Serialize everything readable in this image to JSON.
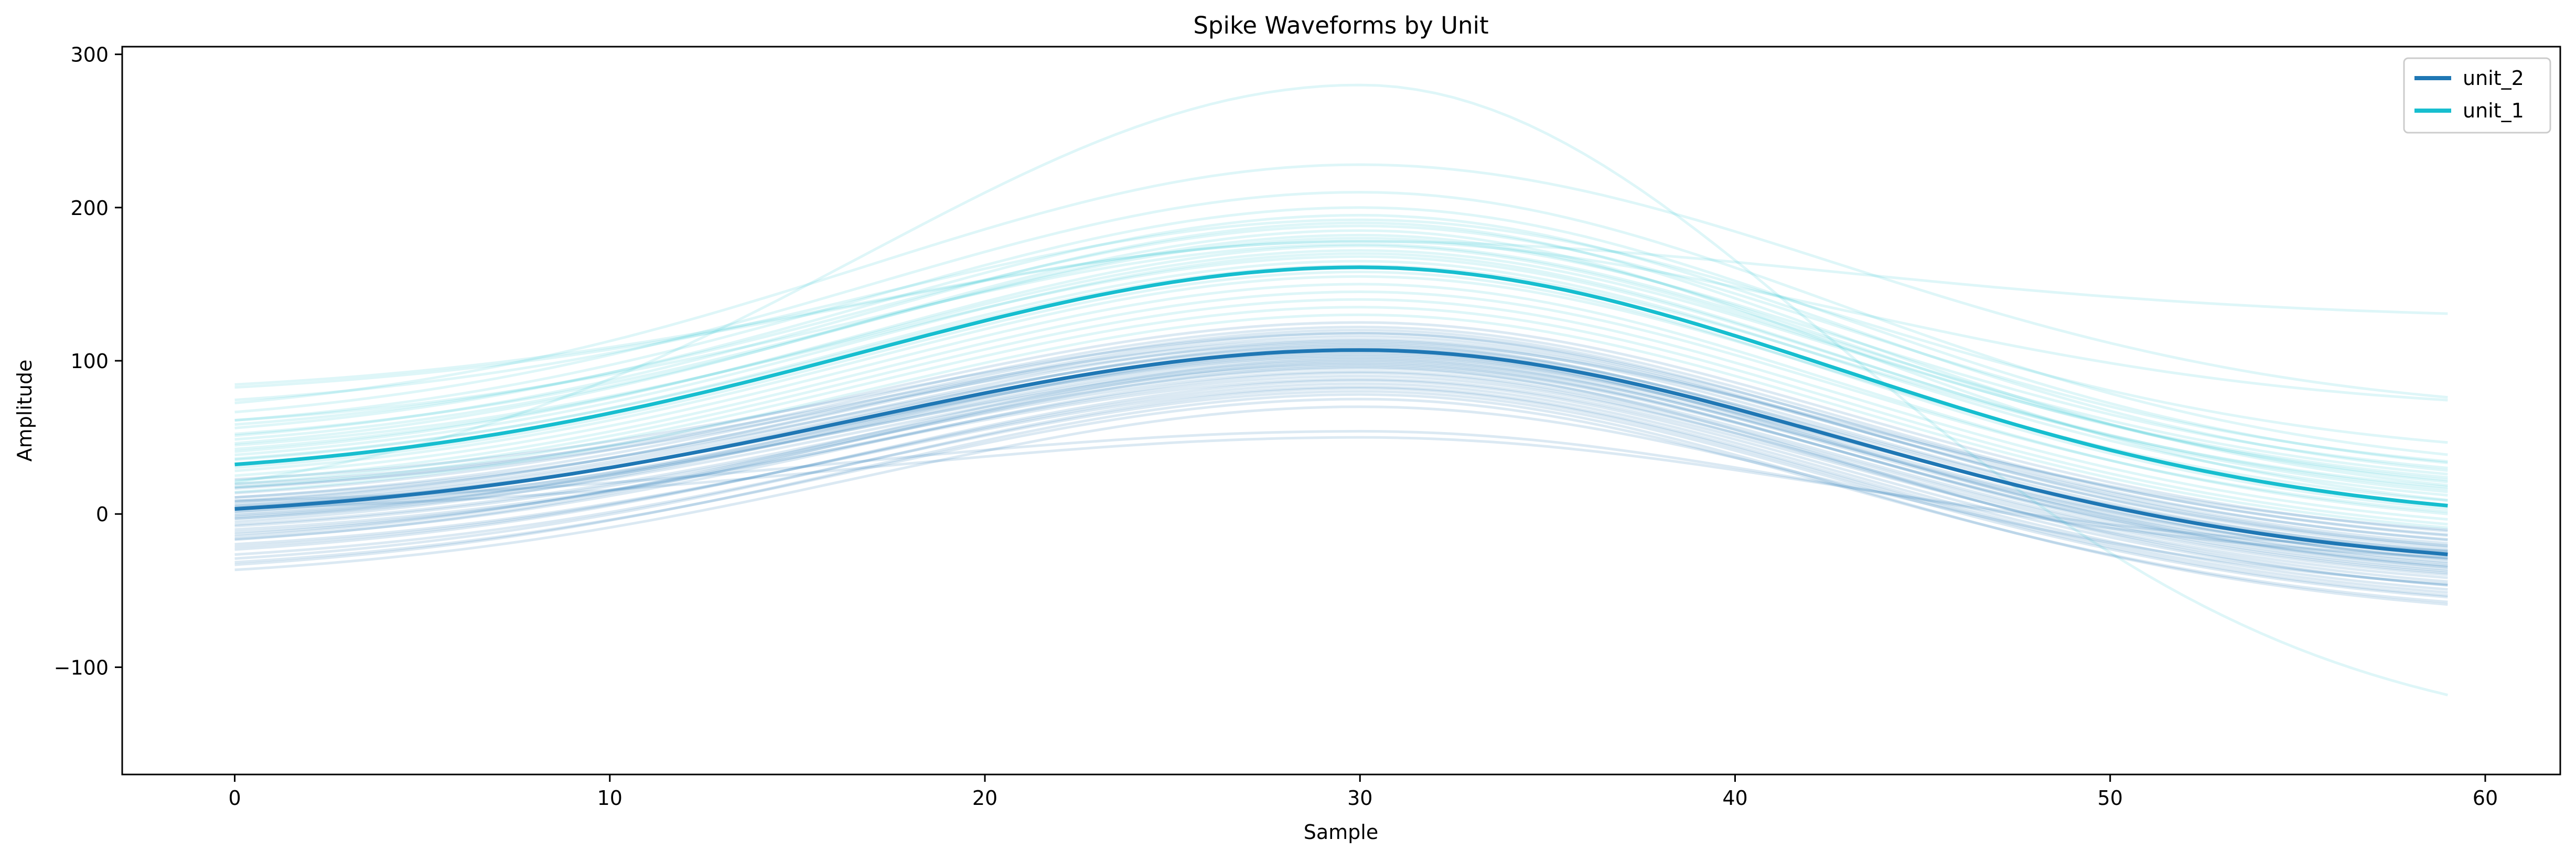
{
  "chart_data": {
    "type": "line",
    "title": "Spike Waveforms by Unit",
    "xlabel": "Sample",
    "ylabel": "Amplitude",
    "xlim": [
      -3,
      62
    ],
    "ylim": [
      -170,
      305
    ],
    "xticks": [
      0,
      10,
      20,
      30,
      40,
      50,
      60
    ],
    "yticks": [
      -100,
      0,
      100,
      200,
      300
    ],
    "xtick_labels": [
      "0",
      "10",
      "20",
      "30",
      "40",
      "50",
      "60"
    ],
    "ytick_labels": [
      "−100",
      "0",
      "100",
      "200",
      "300"
    ],
    "grid": false,
    "legend_position": "top-right",
    "colors": {
      "unit_2": "#1f77b4",
      "unit_1": "#17becf"
    },
    "series": [
      {
        "name": "unit_2",
        "role": "mean",
        "x_start": 0,
        "x_end": 59,
        "peak_x": 30,
        "start_value": -5,
        "peak_value": 107,
        "end_value": -37
      },
      {
        "name": "unit_1",
        "role": "mean",
        "x_start": 0,
        "x_end": 59,
        "peak_x": 30,
        "start_value": 22,
        "peak_value": 161,
        "end_value": -7
      }
    ],
    "individual_traces": {
      "unit_2": [
        [
          -5,
          107,
          -37
        ],
        [
          -3,
          110,
          -35
        ],
        [
          -8,
          104,
          -40
        ],
        [
          -2,
          113,
          -33
        ],
        [
          -10,
          102,
          -42
        ],
        [
          0,
          116,
          -30
        ],
        [
          -6,
          98,
          -45
        ],
        [
          -12,
          108,
          -38
        ],
        [
          2,
          120,
          -28
        ],
        [
          -15,
          95,
          -48
        ],
        [
          -4,
          105,
          -36
        ],
        [
          -7,
          111,
          -41
        ],
        [
          -20,
          90,
          -50
        ],
        [
          5,
          122,
          -25
        ],
        [
          -9,
          100,
          -39
        ],
        [
          -1,
          118,
          -32
        ],
        [
          -25,
          92,
          -55
        ],
        [
          8,
          125,
          -22
        ],
        [
          -11,
          97,
          -44
        ],
        [
          -18,
          88,
          -52
        ],
        [
          -30,
          85,
          -60
        ],
        [
          -35,
          80,
          -65
        ],
        [
          10,
          112,
          -20
        ],
        [
          -14,
          106,
          -46
        ],
        [
          -22,
          96,
          -58
        ],
        [
          3,
          109,
          -31
        ],
        [
          -40,
          75,
          -68
        ],
        [
          -28,
          83,
          -62
        ],
        [
          0,
          50,
          -30
        ],
        [
          5,
          54,
          -35
        ],
        [
          -42,
          78,
          -70
        ],
        [
          -16,
          93,
          -49
        ],
        [
          -24,
          101,
          -43
        ],
        [
          12,
          114,
          -27
        ],
        [
          -32,
          87,
          -57
        ],
        [
          -38,
          82,
          -64
        ],
        [
          -45,
          70,
          -55
        ],
        [
          15,
          118,
          -24
        ],
        [
          -3,
          103,
          -34
        ],
        [
          -26,
          99,
          -47
        ]
      ],
      "unit_1": [
        [
          22,
          161,
          -7
        ],
        [
          40,
          190,
          5
        ],
        [
          30,
          175,
          10
        ],
        [
          15,
          150,
          -12
        ],
        [
          50,
          200,
          20
        ],
        [
          35,
          185,
          -5
        ],
        [
          60,
          228,
          64
        ],
        [
          10,
          140,
          -15
        ],
        [
          28,
          170,
          2
        ],
        [
          45,
          195,
          15
        ],
        [
          75,
          178,
          127
        ],
        [
          20,
          158,
          -9
        ],
        [
          38,
          182,
          8
        ],
        [
          25,
          165,
          0
        ],
        [
          55,
          210,
          25
        ],
        [
          5,
          130,
          -20
        ],
        [
          32,
          172,
          12
        ],
        [
          18,
          155,
          -3
        ],
        [
          65,
          192,
          35
        ],
        [
          42,
          180,
          18
        ],
        [
          0,
          280,
          -150
        ],
        [
          12,
          145,
          -10
        ],
        [
          48,
          188,
          22
        ],
        [
          8,
          135,
          -18
        ],
        [
          35,
          168,
          4
        ],
        [
          77,
          178,
          66
        ],
        [
          26,
          162,
          6
        ],
        [
          52,
          176,
          14
        ]
      ]
    }
  }
}
